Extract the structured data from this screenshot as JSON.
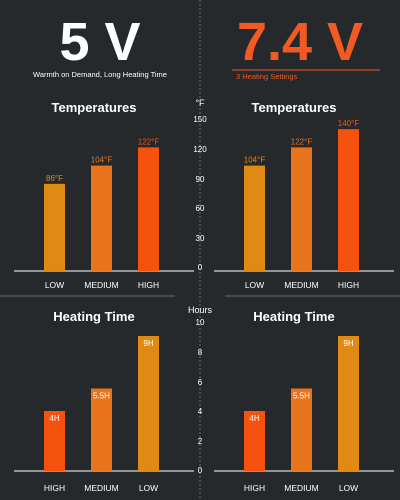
{
  "header": {
    "left": {
      "title": "5 V",
      "subtitle": "Warmth on Demand, Long Heating Time"
    },
    "right": {
      "title": "7.4 V",
      "subtitle": "3 Heating Settings"
    }
  },
  "colors": {
    "background": "#26292c",
    "white": "#ffffff",
    "orange": "#f15a22",
    "low": "#e08a14",
    "medium": "#e8741d",
    "high": "#f5520f",
    "axis_text": "#ffffff",
    "divider": "#6a6d70"
  },
  "chart_data": [
    {
      "type": "bar",
      "panel": "top-left",
      "title": "Temperatures",
      "categories": [
        "LOW",
        "MEDIUM",
        "HIGH"
      ],
      "values": [
        86,
        104,
        122
      ],
      "labels": [
        "86°F",
        "104°F",
        "122°F"
      ],
      "ylim": [
        0,
        150
      ]
    },
    {
      "type": "bar",
      "panel": "top-right",
      "title": "Temperatures",
      "categories": [
        "LOW",
        "MEDIUM",
        "HIGH"
      ],
      "values": [
        104,
        122,
        140
      ],
      "labels": [
        "104°F",
        "122°F",
        "140°F"
      ],
      "ylim": [
        0,
        150
      ]
    },
    {
      "type": "bar",
      "panel": "bottom-left",
      "title": "Heating Time",
      "categories": [
        "HIGH",
        "MEDIUM",
        "LOW"
      ],
      "values": [
        4,
        5.5,
        9
      ],
      "labels": [
        "4H",
        "5.5H",
        "9H"
      ],
      "ylim": [
        0,
        10
      ]
    },
    {
      "type": "bar",
      "panel": "bottom-right",
      "title": "Heating Time",
      "categories": [
        "HIGH",
        "MEDIUM",
        "LOW"
      ],
      "values": [
        4,
        5.5,
        9
      ],
      "labels": [
        "4H",
        "5.5H",
        "9H"
      ],
      "ylim": [
        0,
        10
      ]
    }
  ],
  "axes": {
    "temperature": {
      "unit": "°F",
      "ticks": [
        "150",
        "120",
        "90",
        "60",
        "30",
        "0"
      ]
    },
    "time": {
      "unit": "Hours",
      "ticks": [
        "10",
        "8",
        "6",
        "4",
        "2",
        "0"
      ]
    }
  }
}
